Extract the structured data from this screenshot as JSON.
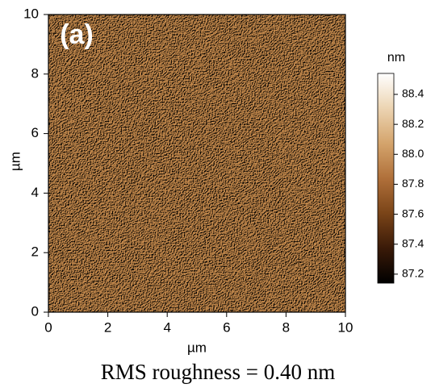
{
  "chart_data": {
    "type": "heatmap",
    "panel_label": "(a)",
    "xlabel": "µm",
    "ylabel": "µm",
    "xlim": [
      0,
      10
    ],
    "ylim": [
      0,
      10
    ],
    "xticks": [
      0,
      2,
      4,
      6,
      8,
      10
    ],
    "yticks": [
      0,
      2,
      4,
      6,
      8,
      10
    ],
    "colorbar": {
      "label": "nm",
      "lim": [
        87.14,
        88.54
      ],
      "ticks": [
        {
          "value": 87.2,
          "label": "87.2"
        },
        {
          "value": 87.4,
          "label": "87.4"
        },
        {
          "value": 87.6,
          "label": "87.6"
        },
        {
          "value": 87.8,
          "label": "87.8"
        },
        {
          "value": 88,
          "label": "88.0"
        },
        {
          "value": 88.2,
          "label": "88.2"
        },
        {
          "value": 88.4,
          "label": "88.4"
        }
      ],
      "colors": [
        "#000000",
        "#3a1a08",
        "#7a4418",
        "#b0703a",
        "#d4a46c",
        "#ecd4b2",
        "#ffffff"
      ]
    },
    "caption": "RMS roughness = 0.40 nm"
  }
}
